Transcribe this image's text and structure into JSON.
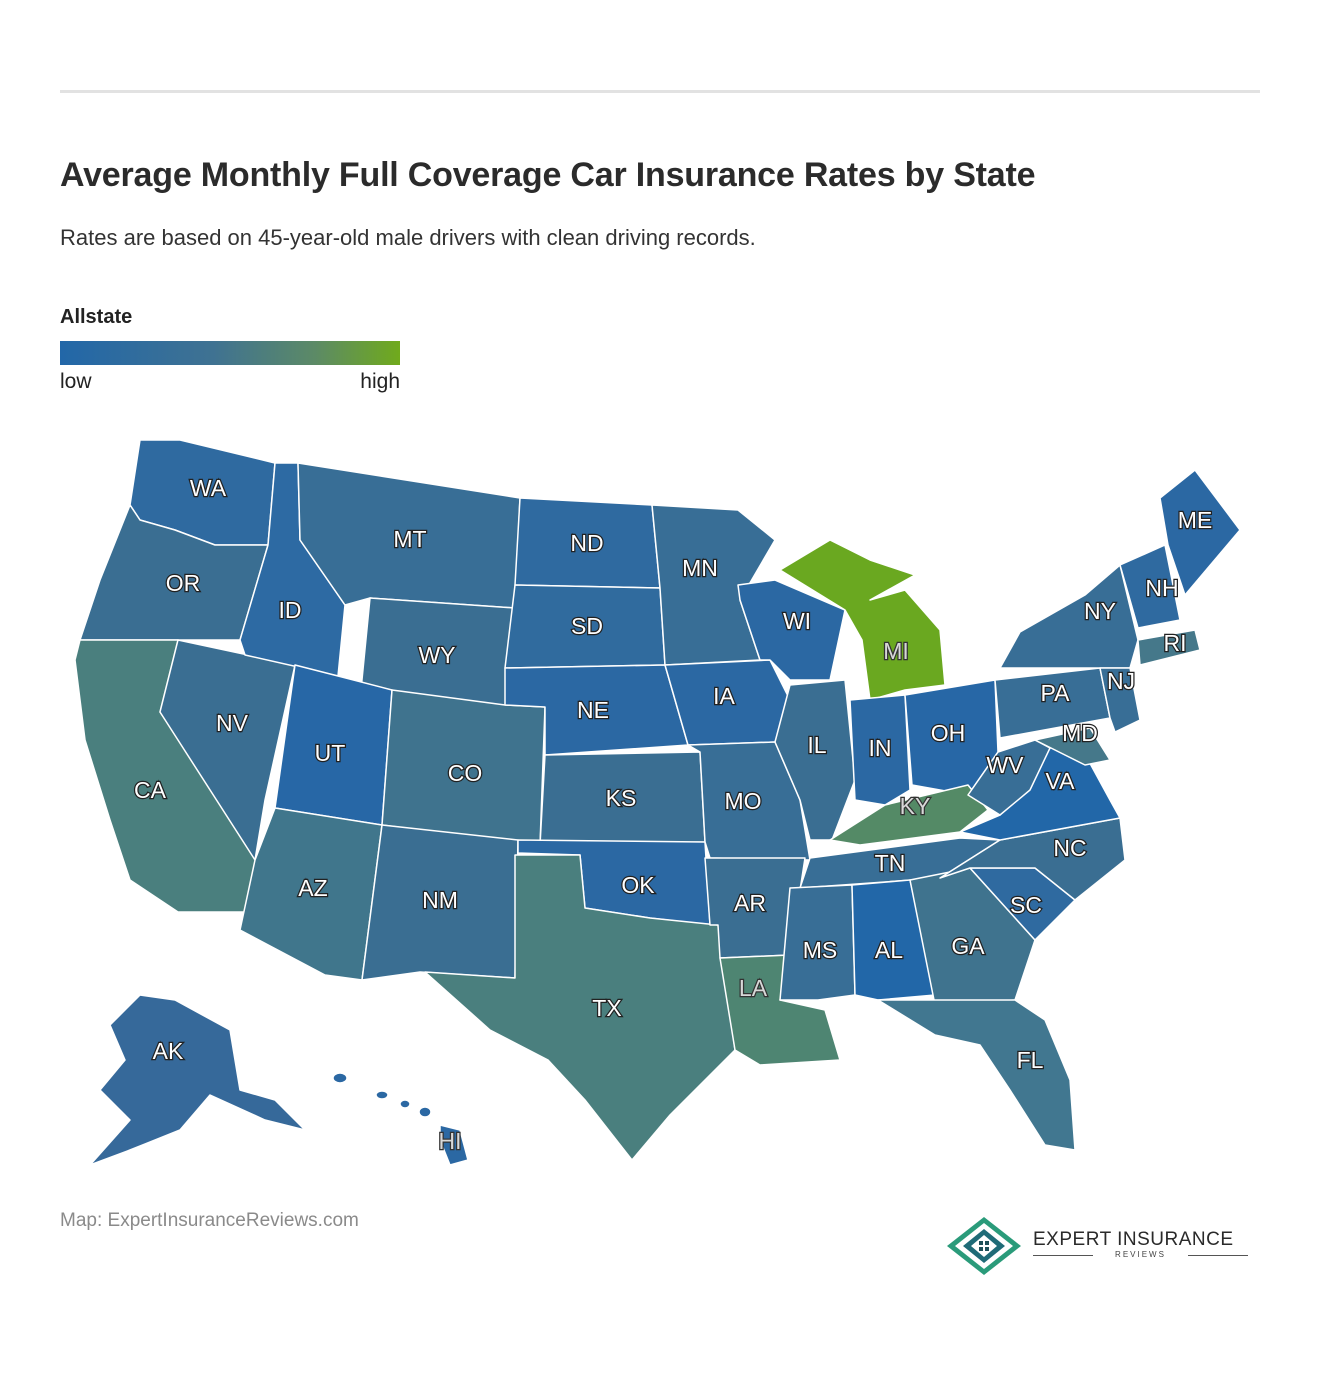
{
  "header": {
    "title": "Average Monthly Full Coverage Car Insurance Rates by State",
    "subtitle": "Rates are based on 45-year-old male drivers with clean driving records."
  },
  "legend": {
    "title": "Allstate",
    "low_label": "low",
    "high_label": "high",
    "low_color": "#2267a8",
    "high_color": "#70aa1c"
  },
  "map": {
    "states": [
      {
        "abbr": "WA",
        "level": "low",
        "color": "#2f6aa0"
      },
      {
        "abbr": "OR",
        "level": "mid-low",
        "color": "#3a6e92"
      },
      {
        "abbr": "CA",
        "level": "mid",
        "color": "#4a7f7e"
      },
      {
        "abbr": "NV",
        "level": "mid-low",
        "color": "#3a6e92"
      },
      {
        "abbr": "ID",
        "level": "low",
        "color": "#2d6aa3"
      },
      {
        "abbr": "MT",
        "level": "mid-low",
        "color": "#386e96"
      },
      {
        "abbr": "WY",
        "level": "mid-low",
        "color": "#3a6e92"
      },
      {
        "abbr": "UT",
        "level": "low",
        "color": "#2767a6"
      },
      {
        "abbr": "AZ",
        "level": "mid",
        "color": "#40768c"
      },
      {
        "abbr": "CO",
        "level": "mid",
        "color": "#3f738e"
      },
      {
        "abbr": "NM",
        "level": "mid-low",
        "color": "#3a6e92"
      },
      {
        "abbr": "ND",
        "level": "low",
        "color": "#2f6aa0"
      },
      {
        "abbr": "SD",
        "level": "low",
        "color": "#306b9e"
      },
      {
        "abbr": "NE",
        "level": "low",
        "color": "#2b68a3"
      },
      {
        "abbr": "KS",
        "level": "mid-low",
        "color": "#3a6e92"
      },
      {
        "abbr": "OK",
        "level": "low",
        "color": "#2b68a3"
      },
      {
        "abbr": "TX",
        "level": "mid",
        "color": "#4a7f7e"
      },
      {
        "abbr": "MN",
        "level": "mid-low",
        "color": "#386e96"
      },
      {
        "abbr": "IA",
        "level": "low",
        "color": "#2b68a3"
      },
      {
        "abbr": "MO",
        "level": "mid-low",
        "color": "#386e96"
      },
      {
        "abbr": "AR",
        "level": "mid-low",
        "color": "#3a6e92"
      },
      {
        "abbr": "LA",
        "level": "mid-high",
        "color": "#4e8572"
      },
      {
        "abbr": "WI",
        "level": "low",
        "color": "#2b68a3"
      },
      {
        "abbr": "IL",
        "level": "mid-low",
        "color": "#3a6e92"
      },
      {
        "abbr": "MI",
        "level": "high",
        "color": "#6aa820"
      },
      {
        "abbr": "IN",
        "level": "low",
        "color": "#2b68a3"
      },
      {
        "abbr": "OH",
        "level": "low",
        "color": "#2767a6"
      },
      {
        "abbr": "KY",
        "level": "mid-high",
        "color": "#548a66"
      },
      {
        "abbr": "TN",
        "level": "mid-low",
        "color": "#386e96"
      },
      {
        "abbr": "MS",
        "level": "mid-low",
        "color": "#386e96"
      },
      {
        "abbr": "AL",
        "level": "low",
        "color": "#2267a8"
      },
      {
        "abbr": "GA",
        "level": "mid",
        "color": "#3f738e"
      },
      {
        "abbr": "FL",
        "level": "mid",
        "color": "#417790"
      },
      {
        "abbr": "SC",
        "level": "low",
        "color": "#2f6aa0"
      },
      {
        "abbr": "NC",
        "level": "mid-low",
        "color": "#3a6e92"
      },
      {
        "abbr": "VA",
        "level": "low",
        "color": "#2267a8"
      },
      {
        "abbr": "WV",
        "level": "mid-low",
        "color": "#386e96"
      },
      {
        "abbr": "PA",
        "level": "mid-low",
        "color": "#386e96"
      },
      {
        "abbr": "NY",
        "level": "mid-low",
        "color": "#386e96"
      },
      {
        "abbr": "MD",
        "level": "mid",
        "color": "#45788a"
      },
      {
        "abbr": "NJ",
        "level": "mid-low",
        "color": "#386e96"
      },
      {
        "abbr": "RI",
        "level": "mid",
        "color": "#45788a"
      },
      {
        "abbr": "NH",
        "level": "low",
        "color": "#2f6aa0"
      },
      {
        "abbr": "ME",
        "level": "low",
        "color": "#2b68a3"
      },
      {
        "abbr": "AK",
        "level": "mid-low",
        "color": "#36699a"
      },
      {
        "abbr": "HI",
        "level": "low",
        "color": "#2b68a3"
      }
    ]
  },
  "footer": {
    "credit": "Map: ExpertInsuranceReviews.com",
    "brand_name": "EXPERT INSURANCE",
    "brand_sub": "REVIEWS"
  }
}
